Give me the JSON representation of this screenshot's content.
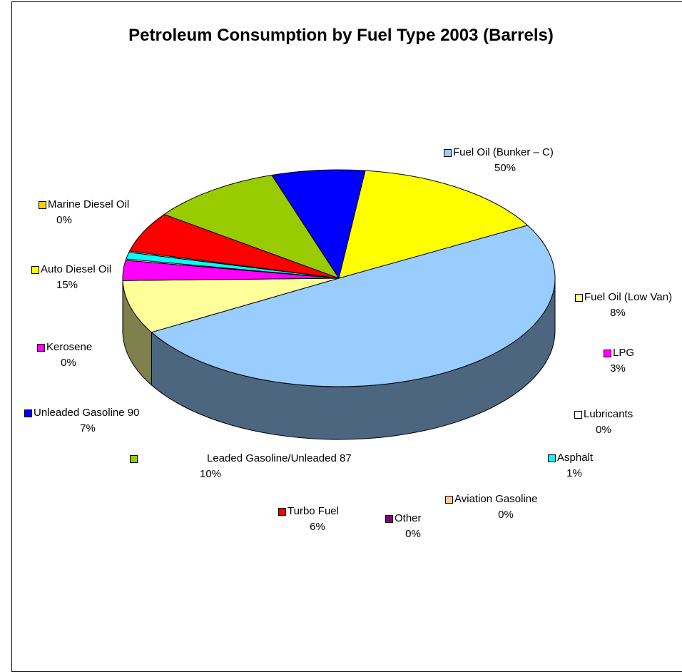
{
  "chart_data": {
    "type": "pie",
    "style": "3d",
    "title": "Petroleum Consumption by Fuel Type 2003 (Barrels)",
    "unit": "%",
    "slices": [
      {
        "label": "Fuel Oil (Bunker – C)",
        "pct_label": "50%",
        "value": 50,
        "color": "#99ccff",
        "side": "#4d6680"
      },
      {
        "label": "Fuel Oil (Low Van)",
        "pct_label": "8%",
        "value": 8,
        "color": "#ffff99",
        "side": "#80804d"
      },
      {
        "label": "LPG",
        "pct_label": "3%",
        "value": 3,
        "color": "#ff00ff",
        "side": "#800080"
      },
      {
        "label": "Lubricants",
        "pct_label": "0%",
        "value": 0.2,
        "color": "#ffffff",
        "side": "#808080"
      },
      {
        "label": "Asphalt",
        "pct_label": "1%",
        "value": 1,
        "color": "#00ffff",
        "side": "#008080"
      },
      {
        "label": "Aviation Gasoline",
        "pct_label": "0%",
        "value": 0.2,
        "color": "#ffcc99",
        "side": "#80664d"
      },
      {
        "label": "Other",
        "pct_label": "0%",
        "value": 0,
        "color": "#800080",
        "side": "#400040"
      },
      {
        "label": "Turbo Fuel",
        "pct_label": "6%",
        "value": 6,
        "color": "#ff0000",
        "side": "#800000"
      },
      {
        "label": "Leaded Gasoline/Unleaded 87",
        "pct_label": "10%",
        "value": 10,
        "color": "#99cc00",
        "side": "#4d6600"
      },
      {
        "label": "Unleaded Gasoline 90",
        "pct_label": "7%",
        "value": 7,
        "color": "#0000ff",
        "side": "#000080"
      },
      {
        "label": "Kerosene",
        "pct_label": "0%",
        "value": 0,
        "color": "#ff00ff",
        "side": "#800080"
      },
      {
        "label": "Auto Diesel Oil",
        "pct_label": "15%",
        "value": 15,
        "color": "#ffff00",
        "side": "#808000"
      },
      {
        "label": "Marine Diesel Oil",
        "pct_label": "0%",
        "value": 0,
        "color": "#ffcc00",
        "side": "#806600"
      }
    ]
  }
}
